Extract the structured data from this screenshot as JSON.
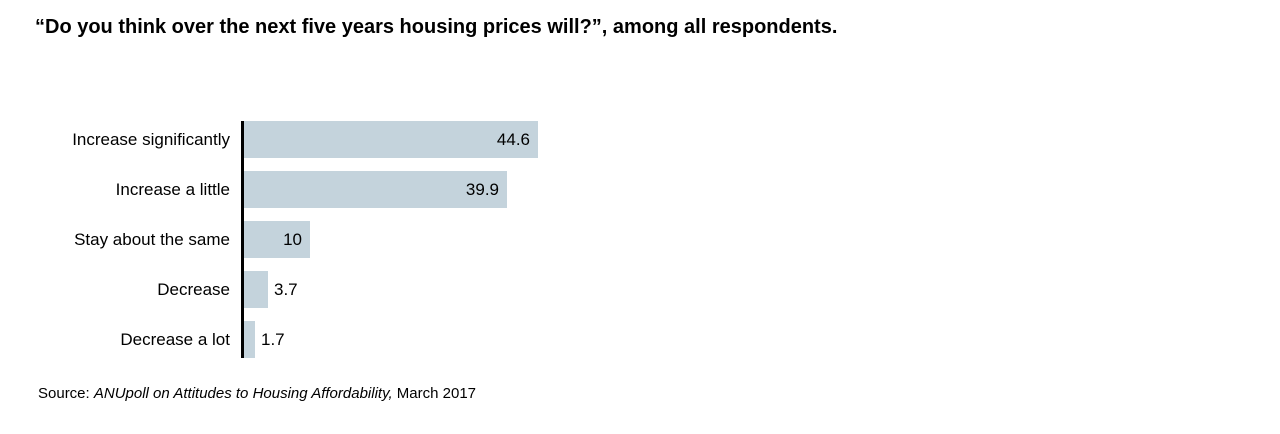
{
  "colors": {
    "bar": "#c4d3dc",
    "axis": "#000000",
    "text": "#000000"
  },
  "source": {
    "prefix": "Source: ",
    "italic": "ANUpoll on Attitudes to Housing Affordability,",
    "suffix": " March 2017"
  },
  "chart_data": {
    "type": "bar",
    "orientation": "horizontal",
    "title": "“Do you think over the next five years housing prices will?”, among all respondents.",
    "categories": [
      "Increase significantly",
      "Increase a little",
      "Stay about the same",
      "Decrease",
      "Decrease a lot"
    ],
    "values": [
      44.6,
      39.9,
      10,
      3.7,
      1.7
    ],
    "value_labels": [
      "44.6",
      "39.9",
      "10",
      "3.7",
      "1.7"
    ],
    "xlabel": "",
    "ylabel": "",
    "xlim": [
      0,
      45
    ],
    "grid": false,
    "legend": null
  }
}
